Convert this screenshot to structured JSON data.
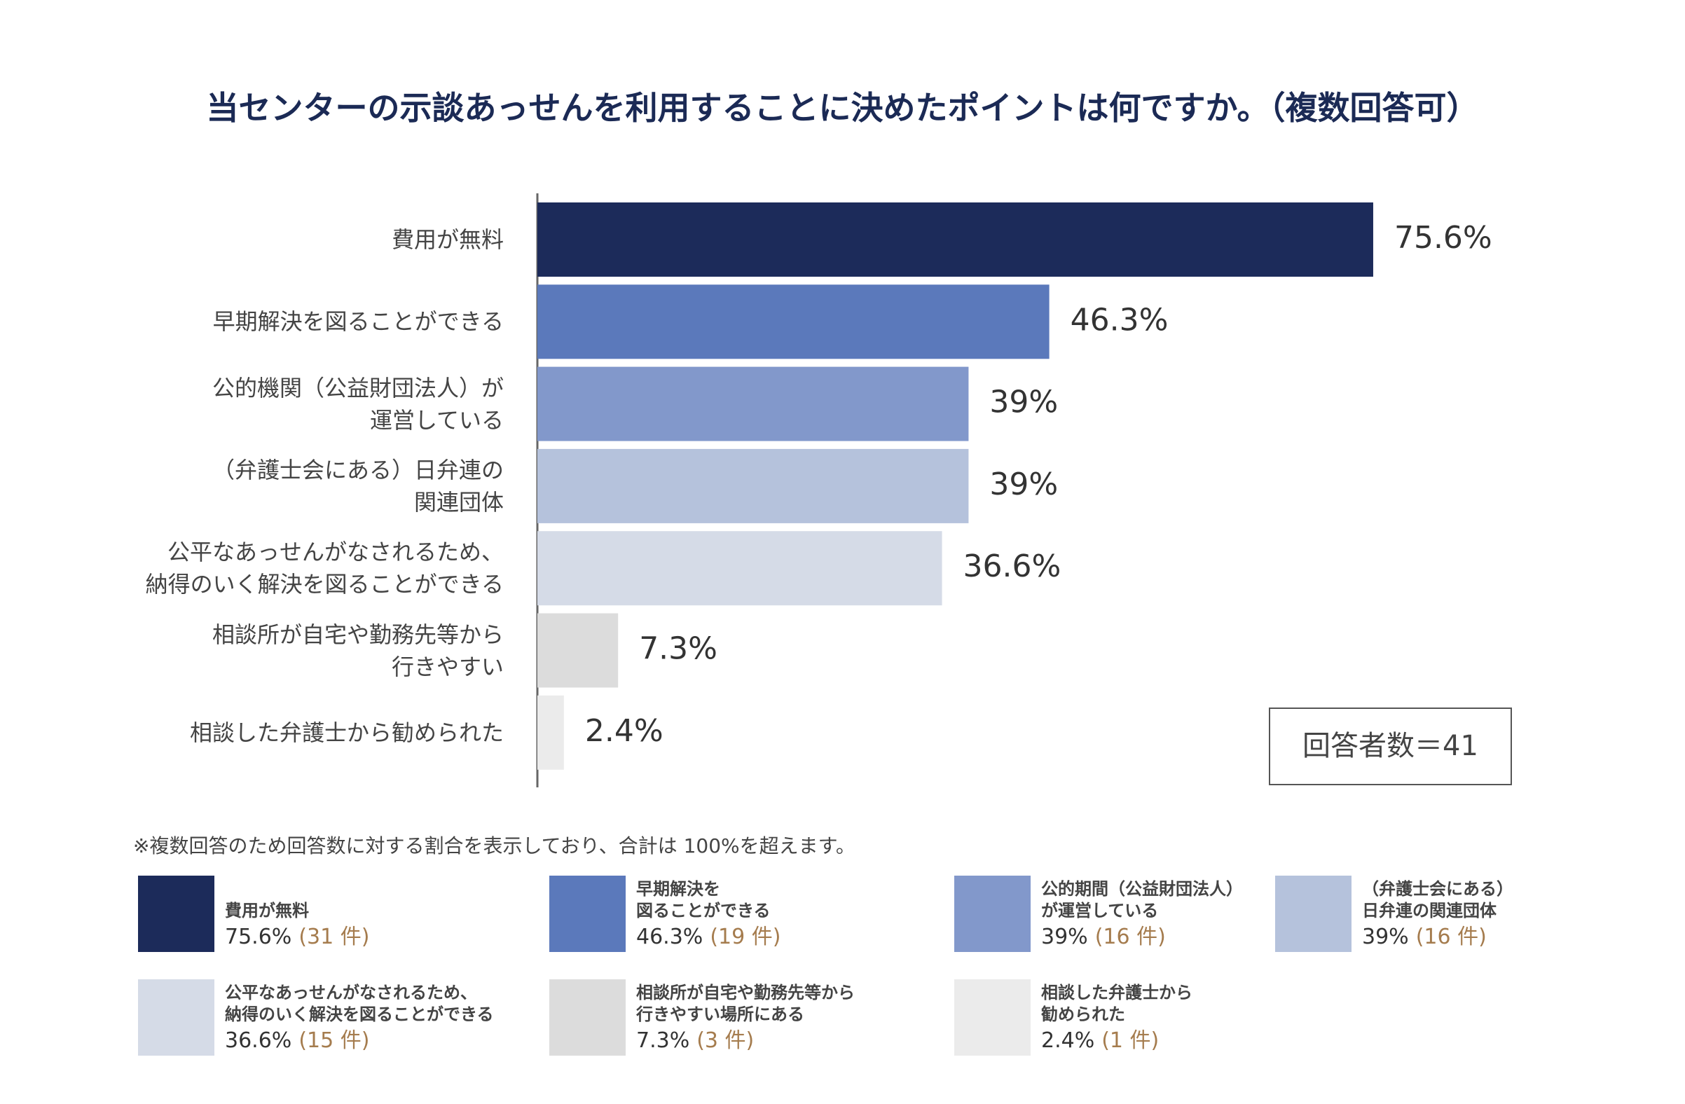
{
  "chart_data": {
    "type": "hbar",
    "title": "当センターの示談あっせんを利用することに決めたポイントは何ですか。（複数回答可）",
    "categories": [
      "費用が無料",
      "早期解決を図ることができる",
      "公的機関（公益財団法人）が\n運営している",
      "（弁護士会にある）日弁連の\n関連団体",
      "公平なあっせんがなされるため、\n納得のいく解決を図ることができる",
      "相談所が自宅や勤務先等から\n行きやすい",
      "相談した弁護士から勧められた"
    ],
    "values": [
      75.6,
      46.3,
      39,
      39,
      36.6,
      7.3,
      2.4
    ],
    "value_labels": [
      "75.6%",
      "46.3%",
      "39%",
      "39%",
      "36.6%",
      "7.3%",
      "2.4%"
    ],
    "colors": [
      "#1c2b5a",
      "#5b79bb",
      "#8298cb",
      "#b5c2dc",
      "#d5dbe7",
      "#dcdcdc",
      "#ebebeb"
    ],
    "xlim": [
      0,
      100
    ],
    "sample_size": "回答者数＝41",
    "note": "※複数回答のため回答数に対する割合を表示しており、合計は 100%を超えます。",
    "legend": {
      "items": [
        {
          "name": "費用が無料",
          "percent": "75.6%",
          "count": "(31 件)"
        },
        {
          "name": "早期解決を\n図ることができる",
          "percent": "46.3%",
          "count": "(19 件)"
        },
        {
          "name": "公的期間（公益財団法人）\nが運営している",
          "percent": "39%",
          "count": "(16 件)"
        },
        {
          "name": "（弁護士会にある）\n日弁連の関連団体",
          "percent": "39%",
          "count": "(16 件)"
        },
        {
          "name": "公平なあっせんがなされるため、\n納得のいく解決を図ることができる",
          "percent": "36.6%",
          "count": "(15 件)"
        },
        {
          "name": "相談所が自宅や勤務先等から\n行きやすい場所にある",
          "percent": "7.3%",
          "count": "(3 件)"
        },
        {
          "name": "相談した弁護士から\n勧められた",
          "percent": "2.4%",
          "count": "(1 件)"
        }
      ]
    }
  }
}
